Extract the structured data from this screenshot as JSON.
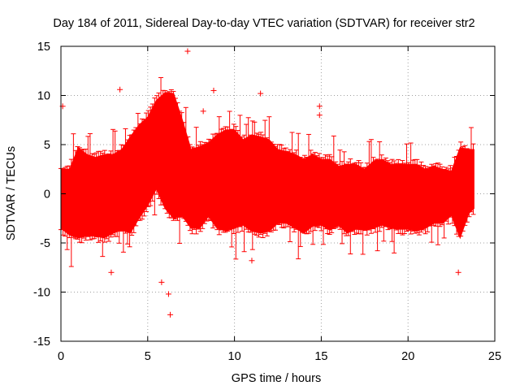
{
  "chart_data": {
    "type": "scatter",
    "title": "Day 184 of 2011, Sidereal Day-to-day VTEC variation (SDTVAR) for receiver str2",
    "xlabel": "GPS time / hours",
    "ylabel": "SDTVAR / TECUs",
    "xlim": [
      0,
      25
    ],
    "ylim": [
      -15,
      15
    ],
    "xticks": [
      0,
      5,
      10,
      15,
      20,
      25
    ],
    "yticks": [
      -15,
      -10,
      -5,
      0,
      5,
      10,
      15
    ],
    "grid": true,
    "marker": "plus",
    "color": "#ff0000",
    "envelope": {
      "description": "dense band of points with error bars",
      "x": [
        0.0,
        0.5,
        1.0,
        1.5,
        2.0,
        2.5,
        3.0,
        3.5,
        4.0,
        4.5,
        5.0,
        5.5,
        6.0,
        6.5,
        7.0,
        7.5,
        8.0,
        8.5,
        9.0,
        9.5,
        10.0,
        10.5,
        11.0,
        11.5,
        12.0,
        12.5,
        13.0,
        13.5,
        14.0,
        14.5,
        15.0,
        15.5,
        16.0,
        16.5,
        17.0,
        17.5,
        18.0,
        18.5,
        19.0,
        19.5,
        20.0,
        20.5,
        21.0,
        21.5,
        22.0,
        22.5,
        23.0,
        23.5,
        23.8
      ],
      "upper": [
        2.5,
        2.5,
        4.7,
        4.0,
        3.7,
        4.0,
        4.0,
        4.5,
        5.8,
        7.0,
        7.8,
        9.5,
        10.3,
        10.2,
        7.5,
        4.5,
        4.8,
        5.2,
        6.0,
        6.5,
        6.5,
        5.5,
        6.0,
        5.8,
        5.5,
        4.5,
        4.3,
        4.0,
        3.5,
        4.0,
        3.5,
        3.5,
        2.8,
        3.0,
        3.0,
        2.5,
        3.3,
        3.5,
        3.0,
        3.0,
        3.0,
        3.0,
        2.5,
        2.8,
        2.5,
        2.3,
        4.7,
        4.5,
        4.5
      ],
      "lower": [
        -3.5,
        -4.2,
        -4.5,
        -4.3,
        -4.3,
        -4.5,
        -4.0,
        -3.7,
        -4.0,
        -2.5,
        -1.2,
        0.5,
        -1.5,
        -2.5,
        -2.3,
        -3.5,
        -3.5,
        -2.3,
        -3.5,
        -3.8,
        -3.5,
        -3.2,
        -3.8,
        -4.0,
        -3.8,
        -3.0,
        -3.0,
        -3.5,
        -4.0,
        -3.3,
        -3.2,
        -3.7,
        -3.2,
        -4.0,
        -3.6,
        -3.7,
        -3.5,
        -3.2,
        -3.5,
        -3.6,
        -3.6,
        -3.8,
        -3.5,
        -3.0,
        -3.0,
        -2.2,
        -4.5,
        -2.0,
        -1.5
      ]
    },
    "outliers": [
      {
        "x": 0.1,
        "y": 8.9
      },
      {
        "x": 3.4,
        "y": 10.6
      },
      {
        "x": 5.8,
        "y": -9.0
      },
      {
        "x": 6.2,
        "y": -10.2
      },
      {
        "x": 6.3,
        "y": -12.3
      },
      {
        "x": 7.3,
        "y": 14.5
      },
      {
        "x": 8.2,
        "y": 8.4
      },
      {
        "x": 8.8,
        "y": 10.5
      },
      {
        "x": 11.0,
        "y": -6.8
      },
      {
        "x": 14.9,
        "y": 8.9
      },
      {
        "x": 14.9,
        "y": 8.0
      },
      {
        "x": 22.9,
        "y": -8.0
      },
      {
        "x": 2.9,
        "y": -8.0
      },
      {
        "x": 11.5,
        "y": 10.2
      }
    ]
  }
}
